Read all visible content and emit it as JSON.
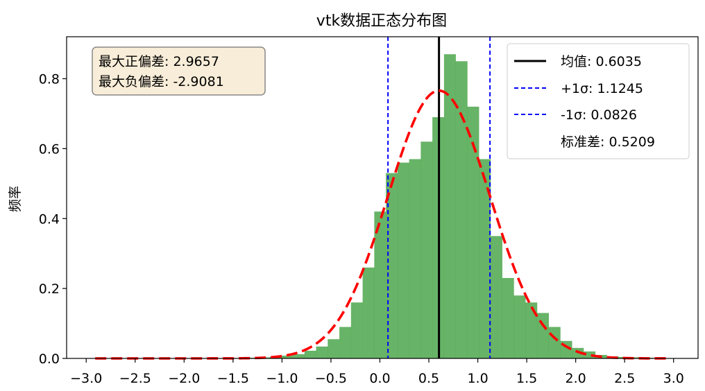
{
  "chart_data": {
    "type": "bar",
    "title": "vtk数据正态分布图",
    "xlabel": "",
    "ylabel": "频率",
    "xlim": [
      -3.2,
      3.25
    ],
    "ylim": [
      0,
      0.92
    ],
    "xticks": [
      -3.0,
      -2.5,
      -2.0,
      -1.5,
      -1.0,
      -0.5,
      0.0,
      0.5,
      1.0,
      1.5,
      2.0,
      2.5,
      3.0
    ],
    "xtick_labels": [
      "−3.0",
      "−2.5",
      "−2.0",
      "−1.5",
      "−1.0",
      "−0.5",
      "0.0",
      "0.5",
      "1.0",
      "1.5",
      "2.0",
      "2.5",
      "3.0"
    ],
    "yticks": [
      0.0,
      0.2,
      0.4,
      0.6,
      0.8
    ],
    "ytick_labels": [
      "0.0",
      "0.2",
      "0.4",
      "0.6",
      "0.8"
    ],
    "histogram": {
      "color": "#4ca64c",
      "bin_edges": [
        -2.9081,
        -2.7894,
        -2.6706,
        -2.5518,
        -2.4331,
        -2.3143,
        -2.1955,
        -2.0767,
        -1.958,
        -1.8392,
        -1.7204,
        -1.6016,
        -1.4829,
        -1.3641,
        -1.2453,
        -1.1266,
        -1.0078,
        -0.889,
        -0.7702,
        -0.6515,
        -0.5327,
        -0.4139,
        -0.2952,
        -0.1764,
        -0.0576,
        0.0612,
        0.1799,
        0.2987,
        0.4175,
        0.5362,
        0.655,
        0.7738,
        0.8926,
        1.0113,
        1.1301,
        1.2489,
        1.3676,
        1.4864,
        1.6052,
        1.724,
        1.8427,
        1.9615,
        2.0803,
        2.1991,
        2.3178,
        2.4366,
        2.5554,
        2.6741,
        2.7929,
        2.9117
      ],
      "values": [
        0,
        0,
        0,
        0,
        0,
        0,
        0,
        0,
        0,
        0,
        0,
        0,
        0,
        0.002,
        0.003,
        0.004,
        0.008,
        0.012,
        0.022,
        0.034,
        0.055,
        0.09,
        0.16,
        0.26,
        0.42,
        0.53,
        0.56,
        0.57,
        0.62,
        0.69,
        0.87,
        0.85,
        0.72,
        0.57,
        0.35,
        0.23,
        0.18,
        0.16,
        0.13,
        0.09,
        0.05,
        0.03,
        0.02,
        0.01,
        0.006,
        0.004,
        0.003,
        0.002,
        0.001,
        0.001
      ]
    },
    "normal_curve": {
      "color": "#ff0000",
      "mean": 0.6035,
      "std": 0.5209,
      "x_range": [
        -2.9081,
        2.9657
      ]
    },
    "vlines": [
      {
        "x": 0.6035,
        "color": "#000000",
        "style": "solid"
      },
      {
        "x": 1.1245,
        "color": "#0000ff",
        "style": "dashed"
      },
      {
        "x": 0.0826,
        "color": "#0000ff",
        "style": "dashed"
      }
    ],
    "legend": {
      "placement": "top-right",
      "entries": [
        {
          "label": "均值: 0.6035",
          "color": "#000000",
          "style": "solid"
        },
        {
          "label": "+1σ: 1.1245",
          "color": "#0000ff",
          "style": "dashed"
        },
        {
          "label": "-1σ: 0.0826",
          "color": "#0000ff",
          "style": "dashed"
        },
        {
          "label": "标准差: 0.5209",
          "color": "",
          "style": "none"
        }
      ]
    },
    "stats_box": {
      "placement": "top-left",
      "lines": [
        "最大正偏差: 2.9657",
        "最大负偏差: -2.9081"
      ]
    }
  }
}
